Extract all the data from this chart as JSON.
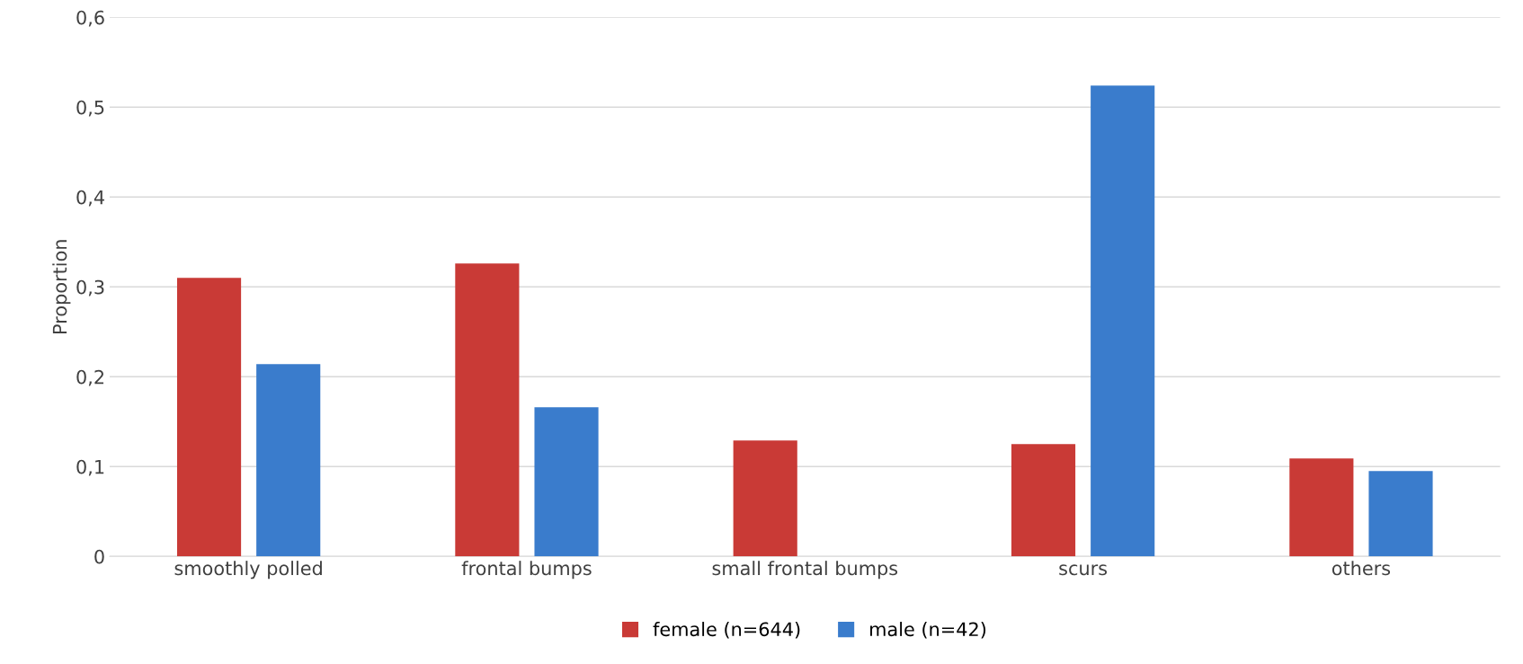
{
  "chart_data": {
    "type": "bar",
    "ylabel": "Proportion",
    "categories": [
      "smoothly polled",
      "frontal bumps",
      "small frontal bumps",
      "scurs",
      "others"
    ],
    "series": [
      {
        "name": "female (n=644)",
        "color": "#c93a36",
        "values": [
          0.31,
          0.326,
          0.129,
          0.125,
          0.109
        ]
      },
      {
        "name": "male (n=42)",
        "color": "#3a7ccc",
        "values": [
          0.214,
          0.166,
          0,
          0.524,
          0.095
        ]
      }
    ],
    "ylim": [
      0,
      0.6
    ],
    "yticks": [
      0,
      {
        "value": 0.1,
        "label": "0,1"
      },
      {
        "value": 0.2,
        "label": "0,2"
      },
      {
        "value": 0.3,
        "label": "0,3"
      },
      {
        "value": 0.4,
        "label": "0,4"
      },
      {
        "value": 0.5,
        "label": "0,5"
      },
      {
        "value": 0.6,
        "label": "0,6"
      }
    ],
    "grid": "y",
    "legend": "bottom"
  }
}
